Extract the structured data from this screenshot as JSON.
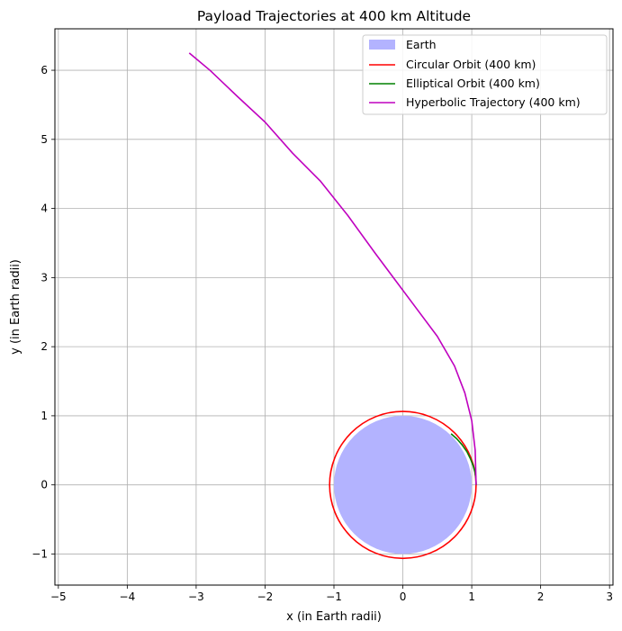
{
  "chart_data": {
    "type": "line",
    "title": "Payload Trajectories at 400 km Altitude",
    "xlabel": "x (in Earth radii)",
    "ylabel": "y (in Earth radii)",
    "xlim": [
      -5.05,
      3.05
    ],
    "ylim": [
      -1.45,
      6.6
    ],
    "xticks": [
      -5,
      -4,
      -3,
      -2,
      -1,
      0,
      1,
      2,
      3
    ],
    "yticks": [
      -1,
      0,
      1,
      2,
      3,
      4,
      5,
      6
    ],
    "xtick_labels": [
      "−5",
      "−4",
      "−3",
      "−2",
      "−1",
      "0",
      "1",
      "2",
      "3"
    ],
    "ytick_labels": [
      "−1",
      "0",
      "1",
      "2",
      "3",
      "4",
      "5",
      "6"
    ],
    "grid": true,
    "legend_position": "top-right",
    "earth": {
      "name": "Earth",
      "center": [
        0,
        0
      ],
      "radius": 1.0,
      "color": "#b3b3ff"
    },
    "series": [
      {
        "name": "Circular Orbit (400 km)",
        "color": "#ff0000",
        "kind": "circle",
        "center": [
          0,
          0
        ],
        "radius": 1.063
      },
      {
        "name": "Elliptical Orbit (400 km)",
        "color": "#008000",
        "kind": "arc",
        "points": [
          [
            0.7,
            0.74
          ],
          [
            0.78,
            0.67
          ],
          [
            0.86,
            0.58
          ],
          [
            0.93,
            0.48
          ],
          [
            0.98,
            0.38
          ],
          [
            1.02,
            0.28
          ],
          [
            1.045,
            0.19
          ],
          [
            1.06,
            0.1
          ],
          [
            1.063,
            0.0
          ]
        ]
      },
      {
        "name": "Hyperbolic Trajectory (400 km)",
        "color": "#bf00bf",
        "kind": "path",
        "points": [
          [
            1.063,
            0.0
          ],
          [
            1.05,
            0.5
          ],
          [
            1.0,
            0.93
          ],
          [
            0.9,
            1.33
          ],
          [
            0.75,
            1.72
          ],
          [
            0.5,
            2.15
          ],
          [
            0.2,
            2.55
          ],
          [
            -0.1,
            2.95
          ],
          [
            -0.4,
            3.35
          ],
          [
            -0.8,
            3.9
          ],
          [
            -1.2,
            4.4
          ],
          [
            -1.6,
            4.8
          ],
          [
            -2.0,
            5.25
          ],
          [
            -2.4,
            5.62
          ],
          [
            -2.8,
            6.0
          ],
          [
            -3.1,
            6.25
          ]
        ]
      }
    ]
  }
}
